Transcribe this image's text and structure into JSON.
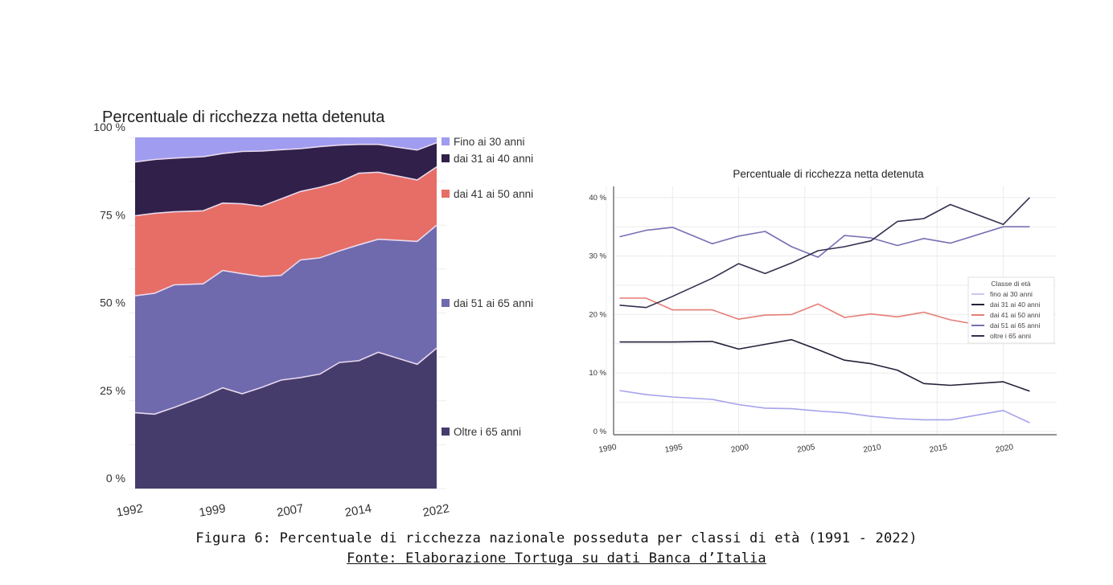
{
  "caption": {
    "figure": "Figura 6: Percentuale di ricchezza nazionale posseduta per classi di età (1991 - 2022)",
    "source": "Fonte: Elaborazione Tortuga su dati Banca d’Italia"
  },
  "chart_data": [
    {
      "type": "area",
      "stacked": true,
      "title": "Percentuale di ricchezza netta detenuta",
      "xlabel": "",
      "ylabel": "",
      "ylim": [
        0,
        100
      ],
      "y_ticks": [
        "0 %",
        "25 %",
        "50 %",
        "75 %",
        "100 %"
      ],
      "x_tick_labels": [
        "1992",
        "1999",
        "2007",
        "2014",
        "2022"
      ],
      "grid": true,
      "legend_position": "right",
      "x": [
        1991,
        1993,
        1995,
        1998,
        2000,
        2002,
        2004,
        2006,
        2008,
        2010,
        2012,
        2014,
        2016,
        2020,
        2022
      ],
      "series": [
        {
          "name": "Oltre i 65 anni",
          "color": "#463c6c",
          "values": [
            21.6,
            21.2,
            23.1,
            26.2,
            28.7,
            27.0,
            28.8,
            30.9,
            31.6,
            32.6,
            35.9,
            36.4,
            38.8,
            35.4,
            40.0
          ]
        },
        {
          "name": "dai 51 ai 65 anni",
          "color": "#6f6aae",
          "values": [
            33.3,
            34.4,
            34.9,
            32.1,
            33.4,
            34.2,
            31.6,
            29.8,
            33.5,
            33.1,
            31.8,
            33.0,
            32.2,
            35.0,
            35.0
          ]
        },
        {
          "name": "dai 41 ai 50 anni",
          "color": "#e66e66",
          "values": [
            22.8,
            22.8,
            20.8,
            20.8,
            19.2,
            19.9,
            20.0,
            21.8,
            19.5,
            20.1,
            19.6,
            20.4,
            19.1,
            17.5,
            16.6
          ]
        },
        {
          "name": "dai 31 ai 40 anni",
          "color": "#30204a",
          "values": [
            15.3,
            15.3,
            15.3,
            15.4,
            14.1,
            14.9,
            15.7,
            14.0,
            12.2,
            11.6,
            10.5,
            8.2,
            7.9,
            8.5,
            6.9
          ]
        },
        {
          "name": "Fino ai 30 anni",
          "color": "#a09cf0",
          "values": [
            7.0,
            6.3,
            5.9,
            5.5,
            4.6,
            4.0,
            3.9,
            3.5,
            3.2,
            2.6,
            2.2,
            2.0,
            2.0,
            3.6,
            1.5
          ]
        }
      ]
    },
    {
      "type": "line",
      "title": "Percentuale di ricchezza netta detenuta",
      "xlabel": "",
      "ylabel": "",
      "ylim": [
        0,
        42
      ],
      "xlim": [
        1990,
        2023
      ],
      "y_ticks": [
        "0 %",
        "10 %",
        "20 %",
        "30 %",
        "40 %"
      ],
      "x_ticks": [
        "1990",
        "1995",
        "2000",
        "2005",
        "2010",
        "2015",
        "2020"
      ],
      "grid": true,
      "legend_title": "Classe di età",
      "legend_position": "right",
      "x": [
        1991,
        1993,
        1995,
        1998,
        2000,
        2002,
        2004,
        2006,
        2008,
        2010,
        2012,
        2014,
        2016,
        2020,
        2022
      ],
      "series": [
        {
          "name": "fino ai 30 anni",
          "color": "#a6a2ec",
          "values": [
            7.0,
            6.3,
            5.9,
            5.5,
            4.6,
            4.0,
            3.9,
            3.5,
            3.2,
            2.6,
            2.2,
            2.0,
            2.0,
            3.6,
            1.5
          ]
        },
        {
          "name": "dai 31  ai 40 anni",
          "color": "#24203a",
          "values": [
            15.3,
            15.3,
            15.3,
            15.4,
            14.1,
            14.9,
            15.7,
            14.0,
            12.2,
            11.6,
            10.5,
            8.2,
            7.9,
            8.5,
            6.9
          ]
        },
        {
          "name": "dai 41 ai 50 anni",
          "color": "#e57d77",
          "values": [
            22.8,
            22.8,
            20.8,
            20.8,
            19.2,
            19.9,
            20.0,
            21.8,
            19.5,
            20.1,
            19.6,
            20.4,
            19.1,
            17.5,
            16.6
          ]
        },
        {
          "name": "dai 51 ai 65 anni",
          "color": "#7670b4",
          "values": [
            33.3,
            34.4,
            34.9,
            32.1,
            33.4,
            34.2,
            31.6,
            29.8,
            33.5,
            33.1,
            31.8,
            33.0,
            32.2,
            35.0,
            35.0
          ]
        },
        {
          "name": "oltre i 65 anni",
          "color": "#34304f",
          "values": [
            21.6,
            21.2,
            23.1,
            26.2,
            28.7,
            27.0,
            28.8,
            30.9,
            31.6,
            32.6,
            35.9,
            36.4,
            38.8,
            35.4,
            40.0
          ]
        }
      ]
    }
  ]
}
